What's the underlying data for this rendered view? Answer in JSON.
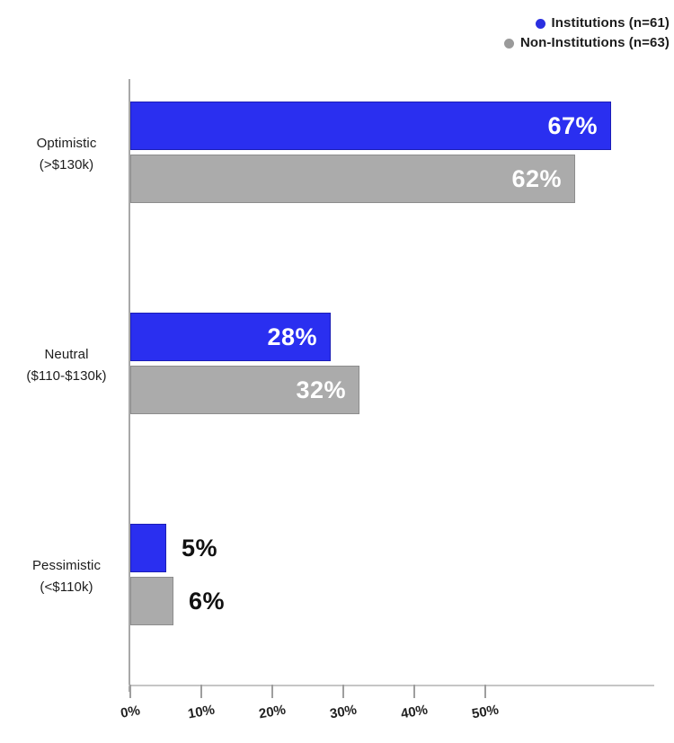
{
  "legend": {
    "items": [
      {
        "label": "Institutions (n=61)",
        "color": "#2a2fe0"
      },
      {
        "label": "Non-Institutions (n=63)",
        "color": "#9a9a9a"
      }
    ]
  },
  "chart_data": {
    "type": "bar",
    "orientation": "horizontal",
    "title": "",
    "xlabel": "",
    "ylabel": "",
    "categories": [
      {
        "label": "Optimistic",
        "sublabel": "(>$130k)"
      },
      {
        "label": "Neutral",
        "sublabel": "($110-$130k)"
      },
      {
        "label": "Pessimistic",
        "sublabel": "(<$110k)"
      }
    ],
    "series": [
      {
        "name": "Institutions (n=61)",
        "color": "#2a2ff0",
        "values": [
          67,
          28,
          5
        ]
      },
      {
        "name": "Non-Institutions (n=63)",
        "color": "#ababab",
        "values": [
          62,
          32,
          6
        ]
      }
    ],
    "value_suffix": "%",
    "x_ticks": [
      "0%",
      "10%",
      "20%",
      "30%",
      "40%",
      "50%"
    ],
    "x_tick_values": [
      0,
      10,
      20,
      30,
      40,
      50
    ],
    "xlim": [
      0,
      73
    ],
    "grid": false,
    "legend_position": "top-right",
    "colors": {
      "institutions_bar": "#2a2ff0",
      "non_institutions_bar": "#ababab",
      "axis_line": "#a8a8a8",
      "tick_text": "#222222",
      "value_inside_text": "#ffffff",
      "value_outside_text": "#111111"
    }
  }
}
